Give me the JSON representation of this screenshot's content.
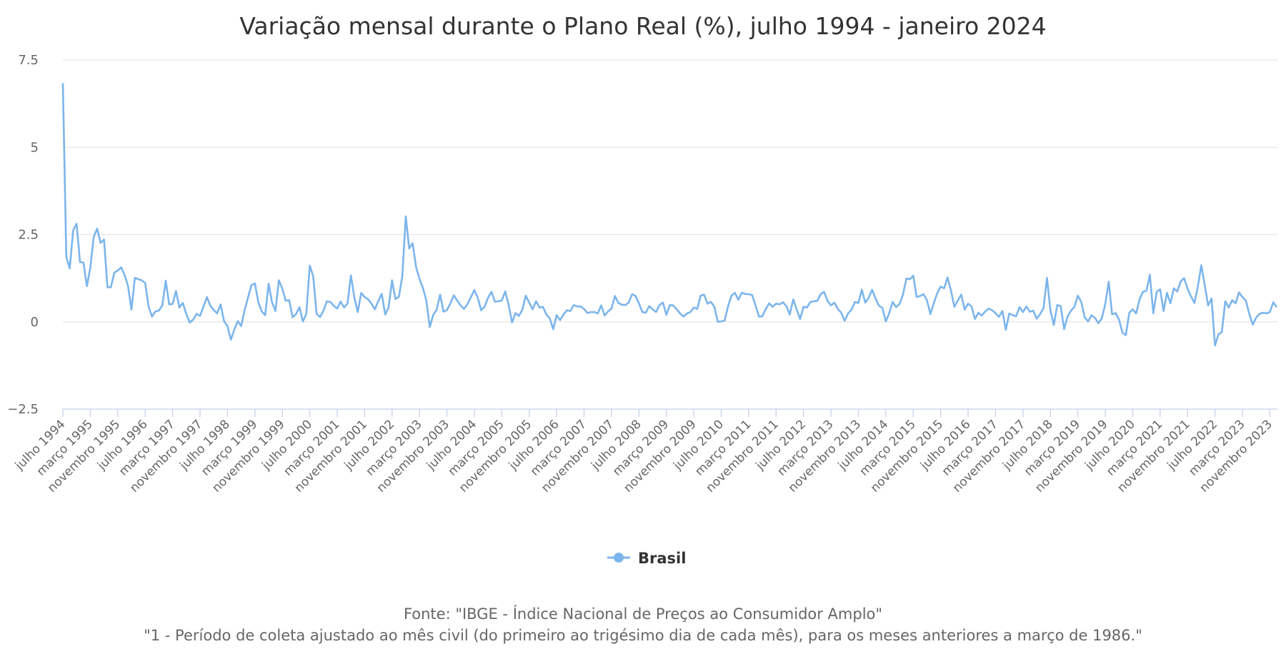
{
  "chart_data": {
    "type": "line",
    "title": "Variação mensal durante o Plano Real (%), julho 1994 - janeiro 2024",
    "xlabel": "",
    "ylabel": "",
    "x_start": "julho 1994",
    "x_end": "janeiro 2024",
    "ylim": [
      -2.5,
      7.5
    ],
    "yticks": [
      -2.5,
      0,
      2.5,
      5,
      7.5
    ],
    "ytick_labels": [
      "−2.5",
      "0",
      "2.5",
      "5",
      "7.5"
    ],
    "grid": true,
    "legend_position": "bottom-center",
    "tick_interval_months": 8,
    "tick_labels": [
      "julho 1994",
      "março 1995",
      "novembro 1995",
      "julho 1996",
      "março 1997",
      "novembro 1997",
      "julho 1998",
      "março 1999",
      "novembro 1999",
      "julho 2000",
      "março 2001",
      "novembro 2001",
      "julho 2002",
      "março 2003",
      "novembro 2003",
      "julho 2004",
      "março 2005",
      "novembro 2005",
      "julho 2006",
      "março 2007",
      "novembro 2007",
      "julho 2008",
      "março 2009",
      "novembro 2009",
      "julho 2010",
      "março 2011",
      "novembro 2011",
      "julho 2012",
      "março 2013",
      "novembro 2013",
      "julho 2014",
      "março 2015",
      "novembro 2015",
      "julho 2016",
      "março 2017",
      "novembro 2017",
      "julho 2018",
      "março 2019",
      "novembro 2019",
      "julho 2020",
      "março 2021",
      "novembro 2021",
      "julho 2022",
      "março 2023",
      "novembro 2023"
    ],
    "series": [
      {
        "name": "Brasil",
        "color": "#7cb5ec",
        "values": [
          6.84,
          1.86,
          1.53,
          2.62,
          2.81,
          1.71,
          1.7,
          1.02,
          1.55,
          2.43,
          2.67,
          2.26,
          2.36,
          0.99,
          0.99,
          1.41,
          1.47,
          1.56,
          1.34,
          1.03,
          0.35,
          1.26,
          1.22,
          1.19,
          1.11,
          0.44,
          0.15,
          0.3,
          0.32,
          0.47,
          1.18,
          0.5,
          0.51,
          0.88,
          0.41,
          0.54,
          0.22,
          -0.02,
          0.06,
          0.23,
          0.17,
          0.43,
          0.71,
          0.46,
          0.34,
          0.24,
          0.5,
          0.02,
          -0.12,
          -0.51,
          -0.22,
          0.02,
          -0.12,
          0.33,
          0.7,
          1.05,
          1.1,
          0.56,
          0.3,
          0.19,
          1.09,
          0.56,
          0.31,
          1.19,
          0.95,
          0.6,
          0.62,
          0.13,
          0.22,
          0.42,
          0.01,
          0.23,
          1.61,
          1.31,
          0.23,
          0.14,
          0.32,
          0.59,
          0.57,
          0.46,
          0.38,
          0.58,
          0.41,
          0.52,
          1.33,
          0.7,
          0.28,
          0.83,
          0.71,
          0.65,
          0.52,
          0.36,
          0.6,
          0.8,
          0.21,
          0.42,
          1.19,
          0.65,
          0.72,
          1.31,
          3.02,
          2.1,
          2.25,
          1.57,
          1.23,
          0.97,
          0.61,
          -0.15,
          0.2,
          0.34,
          0.78,
          0.29,
          0.34,
          0.52,
          0.76,
          0.61,
          0.47,
          0.37,
          0.51,
          0.71,
          0.91,
          0.69,
          0.33,
          0.44,
          0.69,
          0.86,
          0.58,
          0.59,
          0.61,
          0.87,
          0.49,
          -0.02,
          0.25,
          0.17,
          0.35,
          0.75,
          0.55,
          0.36,
          0.59,
          0.41,
          0.43,
          0.21,
          0.1,
          -0.21,
          0.19,
          0.05,
          0.21,
          0.33,
          0.31,
          0.48,
          0.44,
          0.44,
          0.37,
          0.25,
          0.28,
          0.28,
          0.24,
          0.47,
          0.18,
          0.3,
          0.38,
          0.74,
          0.54,
          0.49,
          0.48,
          0.55,
          0.79,
          0.74,
          0.53,
          0.28,
          0.26,
          0.45,
          0.36,
          0.28,
          0.48,
          0.55,
          0.2,
          0.48,
          0.47,
          0.36,
          0.24,
          0.15,
          0.24,
          0.28,
          0.41,
          0.37,
          0.75,
          0.78,
          0.52,
          0.57,
          0.43,
          0.0,
          0.01,
          0.04,
          0.45,
          0.75,
          0.83,
          0.63,
          0.83,
          0.8,
          0.79,
          0.77,
          0.47,
          0.15,
          0.16,
          0.37,
          0.53,
          0.43,
          0.52,
          0.5,
          0.56,
          0.45,
          0.21,
          0.64,
          0.36,
          0.08,
          0.43,
          0.41,
          0.57,
          0.59,
          0.6,
          0.79,
          0.86,
          0.6,
          0.47,
          0.55,
          0.37,
          0.26,
          0.03,
          0.24,
          0.35,
          0.57,
          0.54,
          0.92,
          0.55,
          0.69,
          0.92,
          0.67,
          0.46,
          0.4,
          0.01,
          0.25,
          0.57,
          0.42,
          0.51,
          0.78,
          1.24,
          1.22,
          1.32,
          0.71,
          0.74,
          0.79,
          0.62,
          0.22,
          0.54,
          0.82,
          1.01,
          0.96,
          1.27,
          0.9,
          0.43,
          0.61,
          0.78,
          0.35,
          0.52,
          0.44,
          0.08,
          0.26,
          0.18,
          0.3,
          0.38,
          0.33,
          0.25,
          0.14,
          0.31,
          -0.23,
          0.24,
          0.19,
          0.16,
          0.42,
          0.28,
          0.44,
          0.29,
          0.32,
          0.09,
          0.22,
          0.4,
          1.26,
          0.33,
          -0.09,
          0.48,
          0.45,
          -0.21,
          0.15,
          0.32,
          0.43,
          0.75,
          0.57,
          0.13,
          0.01,
          0.19,
          0.11,
          -0.04,
          0.1,
          0.51,
          1.15,
          0.21,
          0.25,
          0.07,
          -0.31,
          -0.38,
          0.26,
          0.36,
          0.24,
          0.64,
          0.86,
          0.89,
          1.35,
          0.25,
          0.86,
          0.93,
          0.31,
          0.83,
          0.53,
          0.96,
          0.87,
          1.16,
          1.25,
          0.95,
          0.73,
          0.54,
          1.01,
          1.62,
          1.06,
          0.47,
          0.67,
          -0.68,
          -0.36,
          -0.29,
          0.59,
          0.41,
          0.62,
          0.53,
          0.84,
          0.71,
          0.61,
          0.23,
          -0.08,
          0.12,
          0.23,
          0.26,
          0.24,
          0.28,
          0.56,
          0.42
        ]
      }
    ],
    "credits": [
      "Fonte: \"IBGE - Índice Nacional de Preços ao Consumidor Amplo\"",
      "\"1 - Período de coleta ajustado ao mês civil (do primeiro ao trigésimo dia de cada mês), para os meses anteriores a março de 1986.\""
    ]
  }
}
